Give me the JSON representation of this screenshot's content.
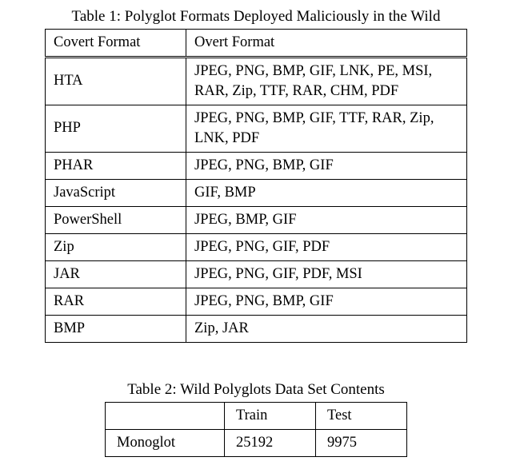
{
  "table1": {
    "caption": "Table 1: Polyglot Formats Deployed Maliciously in the Wild",
    "headers": {
      "covert": "Covert Format",
      "overt": "Overt Format"
    },
    "rows": [
      {
        "covert": "HTA",
        "overt": "JPEG, PNG, BMP, GIF, LNK, PE, MSI, RAR, Zip, TTF, RAR, CHM, PDF"
      },
      {
        "covert": "PHP",
        "overt": "JPEG, PNG, BMP, GIF, TTF, RAR, Zip, LNK, PDF"
      },
      {
        "covert": "PHAR",
        "overt": "JPEG, PNG, BMP, GIF"
      },
      {
        "covert": "JavaScript",
        "overt": "GIF, BMP"
      },
      {
        "covert": "PowerShell",
        "overt": "JPEG, BMP, GIF"
      },
      {
        "covert": "Zip",
        "overt": "JPEG, PNG, GIF, PDF"
      },
      {
        "covert": "JAR",
        "overt": "JPEG, PNG, GIF, PDF, MSI"
      },
      {
        "covert": "RAR",
        "overt": "JPEG, PNG, BMP, GIF"
      },
      {
        "covert": "BMP",
        "overt": "Zip, JAR"
      }
    ]
  },
  "table2": {
    "caption": "Table 2: Wild Polyglots Data Set Contents",
    "headers": {
      "label": "",
      "train": "Train",
      "test": "Test"
    },
    "rows": [
      {
        "label": "Monoglot",
        "train": "25192",
        "test": "9975"
      }
    ]
  },
  "colors": {
    "text": "#000000",
    "background": "#ffffff",
    "border": "#000000"
  },
  "fonts": {
    "family": "Times New Roman",
    "body_size_pt": 14
  }
}
